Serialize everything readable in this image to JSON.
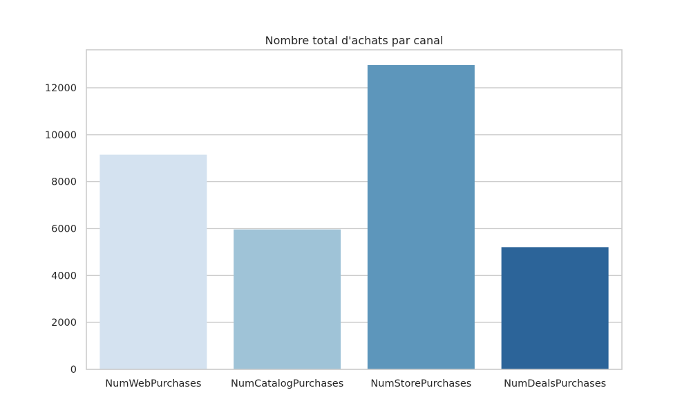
{
  "chart_data": {
    "type": "bar",
    "title": "Nombre total d'achats par canal",
    "xlabel": "",
    "ylabel": "",
    "categories": [
      "NumWebPurchases",
      "NumCatalogPurchases",
      "NumStorePurchases",
      "NumDealsPurchases"
    ],
    "values": [
      9150,
      5963,
      12970,
      5208
    ],
    "colors": [
      "#d4e2f0",
      "#9fc3d7",
      "#5d96bb",
      "#2c6499"
    ],
    "ylim": [
      0,
      13620
    ],
    "yticks": [
      0,
      2000,
      4000,
      6000,
      8000,
      10000,
      12000
    ],
    "grid": true,
    "grid_color": "#cccccc",
    "frame_color": "#cccccc"
  }
}
